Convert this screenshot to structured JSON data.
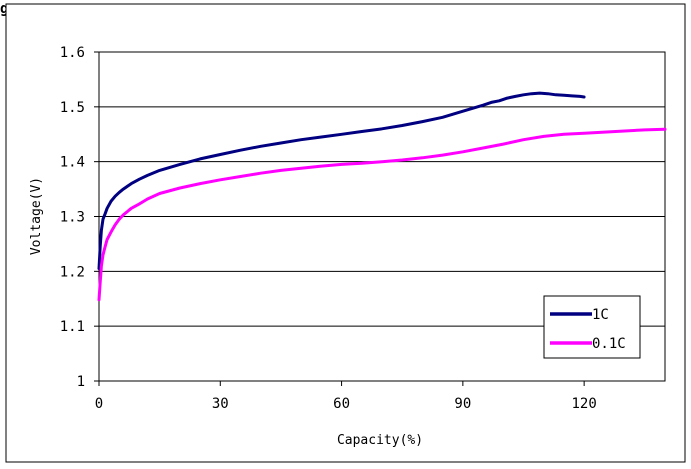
{
  "page_fragment_text": "g",
  "chart_data": {
    "type": "line",
    "xlabel": "Capacity(%)",
    "ylabel": "Voltage(V)",
    "xlim": [
      0,
      140
    ],
    "ylim": [
      1.0,
      1.6
    ],
    "x_ticks": [
      0,
      30,
      60,
      90,
      120
    ],
    "x_tick_labels": [
      "0",
      "30",
      "60",
      "90",
      "120"
    ],
    "y_ticks": [
      1.0,
      1.1,
      1.2,
      1.3,
      1.4,
      1.5,
      1.6
    ],
    "y_tick_labels": [
      "1",
      "1.1",
      "1.2",
      "1.3",
      "1.4",
      "1.5",
      "1.6"
    ],
    "grid": "horizontal",
    "legend_position": "bottom-right",
    "series": [
      {
        "name": "1C",
        "color": "#000080",
        "x": [
          0,
          0.3,
          0.6,
          1,
          1.5,
          2,
          3,
          4,
          5,
          6,
          8,
          10,
          12,
          15,
          20,
          25,
          30,
          35,
          40,
          45,
          50,
          55,
          60,
          65,
          70,
          75,
          80,
          85,
          90,
          95,
          97,
          99,
          101,
          103,
          105,
          107,
          109,
          111,
          113,
          115,
          117,
          119,
          120
        ],
        "y": [
          1.205,
          1.245,
          1.275,
          1.295,
          1.305,
          1.315,
          1.328,
          1.337,
          1.344,
          1.35,
          1.36,
          1.368,
          1.375,
          1.384,
          1.395,
          1.405,
          1.413,
          1.421,
          1.428,
          1.434,
          1.44,
          1.445,
          1.45,
          1.455,
          1.46,
          1.466,
          1.473,
          1.481,
          1.492,
          1.503,
          1.508,
          1.511,
          1.516,
          1.519,
          1.522,
          1.524,
          1.525,
          1.524,
          1.522,
          1.521,
          1.52,
          1.519,
          1.518
        ]
      },
      {
        "name": "0.1C",
        "color": "#FF00FF",
        "x": [
          0,
          0.3,
          0.6,
          1,
          1.5,
          2,
          3,
          4,
          5,
          6,
          8,
          10,
          12,
          15,
          20,
          25,
          30,
          35,
          40,
          45,
          50,
          55,
          60,
          65,
          70,
          75,
          80,
          85,
          90,
          95,
          100,
          105,
          110,
          115,
          120,
          125,
          130,
          135,
          140
        ],
        "y": [
          1.148,
          1.18,
          1.21,
          1.23,
          1.245,
          1.258,
          1.272,
          1.285,
          1.295,
          1.303,
          1.315,
          1.323,
          1.332,
          1.342,
          1.352,
          1.36,
          1.367,
          1.373,
          1.379,
          1.384,
          1.388,
          1.392,
          1.395,
          1.397,
          1.4,
          1.403,
          1.407,
          1.412,
          1.418,
          1.425,
          1.432,
          1.44,
          1.446,
          1.45,
          1.452,
          1.454,
          1.456,
          1.458,
          1.459
        ]
      }
    ]
  }
}
